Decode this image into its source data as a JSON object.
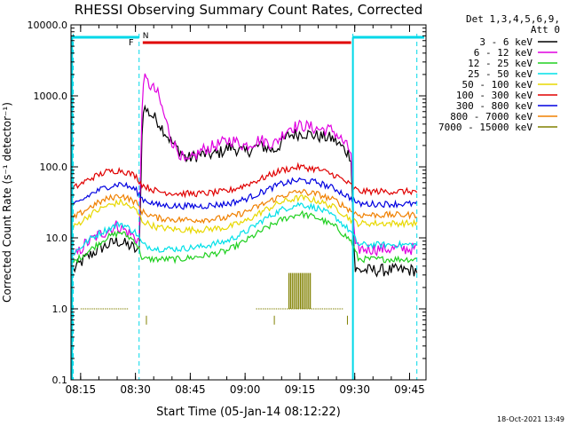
{
  "chart_data": {
    "type": "line",
    "title": "RHESSI Observing Summary Count Rates, Corrected",
    "xlabel": "Start Time (05-Jan-14 08:12:22)",
    "ylabel": "Corrected Count Rate (s⁻¹ detector⁻¹)",
    "y_scale": "log",
    "ylim": [
      0.1,
      10000
    ],
    "xlim": [
      "08:12:22",
      "09:49:30"
    ],
    "x_ticks": [
      "08:15",
      "08:30",
      "08:45",
      "09:00",
      "09:15",
      "09:30",
      "09:45"
    ],
    "y_ticks": [
      "0.1",
      "1.0",
      "10.0",
      "100.0",
      "1000.0",
      "10000.0"
    ],
    "legend_header": [
      "Det 1,3,4,5,6,9,",
      "Att 0"
    ],
    "legend_position": "right",
    "footer_date": "18-Oct-2021 13:49",
    "flags": [
      {
        "label": "F",
        "color": "#e00000"
      },
      {
        "label": "N",
        "color": "#00d8e8"
      }
    ],
    "intervals": {
      "night_top_bars": [
        [
          "08:12:22",
          "08:31:00"
        ],
        [
          "09:29:30",
          "09:49:00"
        ]
      ],
      "flare_bar": [
        "08:32:00",
        "09:29:00"
      ],
      "saa_lines": [
        "08:13:00",
        "08:31:00",
        "09:29:30",
        "09:47:00"
      ]
    },
    "series": [
      {
        "name": "3 - 6 keV",
        "color": "#000000",
        "x": [
          "08:13",
          "08:16",
          "08:20",
          "08:25",
          "08:29",
          "08:31",
          "08:32",
          "08:36",
          "08:40",
          "08:44",
          "08:48",
          "08:52",
          "08:56",
          "09:00",
          "09:04",
          "09:08",
          "09:12",
          "09:16",
          "09:20",
          "09:24",
          "09:27",
          "09:29",
          "09:30",
          "09:35",
          "09:40",
          "09:47"
        ],
        "values": [
          3.5,
          5,
          7,
          9,
          7.5,
          6,
          700,
          450,
          220,
          130,
          150,
          150,
          190,
          160,
          200,
          170,
          280,
          300,
          270,
          250,
          180,
          140,
          3.5,
          3.5,
          3.5,
          3.5
        ]
      },
      {
        "name": "6 - 12 keV",
        "color": "#e000e0",
        "x": [
          "08:13",
          "08:16",
          "08:20",
          "08:25",
          "08:29",
          "08:31",
          "08:32",
          "08:36",
          "08:40",
          "08:44",
          "08:48",
          "08:52",
          "08:56",
          "09:00",
          "09:04",
          "09:08",
          "09:12",
          "09:16",
          "09:20",
          "09:24",
          "09:27",
          "09:29",
          "09:30",
          "09:35",
          "09:40",
          "09:47"
        ],
        "values": [
          5,
          8,
          11,
          15,
          11,
          9,
          1800,
          1100,
          230,
          110,
          170,
          200,
          240,
          200,
          240,
          210,
          360,
          380,
          340,
          330,
          220,
          160,
          7,
          7,
          7,
          7
        ]
      },
      {
        "name": "12 - 25 keV",
        "color": "#20d020",
        "x": [
          "08:13",
          "08:18",
          "08:22",
          "08:26",
          "08:30",
          "08:32",
          "08:36",
          "08:42",
          "08:48",
          "08:55",
          "09:00",
          "09:05",
          "09:10",
          "09:15",
          "09:20",
          "09:25",
          "09:29",
          "09:31",
          "09:40",
          "09:47"
        ],
        "values": [
          4.5,
          7,
          10,
          12,
          9,
          5,
          5,
          5,
          5.5,
          6.5,
          9,
          13,
          18,
          22,
          19,
          14,
          9,
          5,
          5,
          5
        ]
      },
      {
        "name": "25 - 50 keV",
        "color": "#00e0e8",
        "x": [
          "08:13",
          "08:18",
          "08:22",
          "08:26",
          "08:30",
          "08:32",
          "08:36",
          "08:42",
          "08:48",
          "08:55",
          "09:00",
          "09:05",
          "09:10",
          "09:15",
          "09:20",
          "09:25",
          "09:29",
          "09:31",
          "09:40",
          "09:47"
        ],
        "values": [
          6,
          10,
          13,
          16,
          12,
          8,
          7,
          7,
          7.5,
          9,
          12,
          18,
          25,
          30,
          26,
          19,
          12,
          8,
          8,
          8
        ]
      },
      {
        "name": "50 - 100 keV",
        "color": "#e8d800",
        "x": [
          "08:13",
          "08:18",
          "08:22",
          "08:26",
          "08:30",
          "08:32",
          "08:36",
          "08:42",
          "08:48",
          "08:55",
          "09:00",
          "09:05",
          "09:10",
          "09:15",
          "09:20",
          "09:25",
          "09:29",
          "09:31",
          "09:40",
          "09:47"
        ],
        "values": [
          14,
          22,
          28,
          32,
          25,
          17,
          14,
          13,
          13,
          14,
          17,
          24,
          32,
          37,
          33,
          26,
          18,
          16,
          16,
          16
        ]
      },
      {
        "name": "100 - 300 keV",
        "color": "#e00000",
        "x": [
          "08:13",
          "08:18",
          "08:22",
          "08:26",
          "08:30",
          "08:32",
          "08:36",
          "08:42",
          "08:48",
          "08:55",
          "09:00",
          "09:05",
          "09:10",
          "09:15",
          "09:20",
          "09:25",
          "09:29",
          "09:31",
          "09:40",
          "09:47"
        ],
        "values": [
          50,
          70,
          85,
          90,
          75,
          55,
          45,
          42,
          42,
          45,
          55,
          70,
          90,
          100,
          92,
          75,
          55,
          45,
          45,
          45
        ]
      },
      {
        "name": "300 - 800 keV",
        "color": "#0000e0",
        "x": [
          "08:13",
          "08:18",
          "08:22",
          "08:26",
          "08:30",
          "08:32",
          "08:36",
          "08:42",
          "08:48",
          "08:55",
          "09:00",
          "09:05",
          "09:10",
          "09:15",
          "09:20",
          "09:25",
          "09:29",
          "09:31",
          "09:40",
          "09:47"
        ],
        "values": [
          28,
          42,
          52,
          58,
          48,
          35,
          29,
          28,
          28,
          30,
          35,
          45,
          58,
          65,
          60,
          48,
          36,
          30,
          30,
          30
        ]
      },
      {
        "name": "800 - 7000 keV",
        "color": "#f08000",
        "x": [
          "08:13",
          "08:18",
          "08:22",
          "08:26",
          "08:30",
          "08:32",
          "08:36",
          "08:42",
          "08:48",
          "08:55",
          "09:00",
          "09:05",
          "09:10",
          "09:15",
          "09:20",
          "09:25",
          "09:29",
          "09:31",
          "09:40",
          "09:47"
        ],
        "values": [
          19,
          28,
          35,
          40,
          32,
          23,
          19,
          18,
          18,
          19,
          23,
          30,
          39,
          45,
          41,
          33,
          24,
          21,
          21,
          21
        ]
      },
      {
        "name": "7000 - 15000 keV",
        "color": "#808000",
        "x": [
          "08:15",
          "08:28",
          "09:03",
          "09:10",
          "09:12",
          "09:13",
          "09:14",
          "09:15",
          "09:16",
          "09:17",
          "09:18",
          "09:20",
          "09:27"
        ],
        "values": [
          1,
          1,
          1,
          1,
          3.2,
          1,
          3.2,
          1,
          3.2,
          1,
          3.2,
          1,
          1
        ]
      }
    ]
  }
}
